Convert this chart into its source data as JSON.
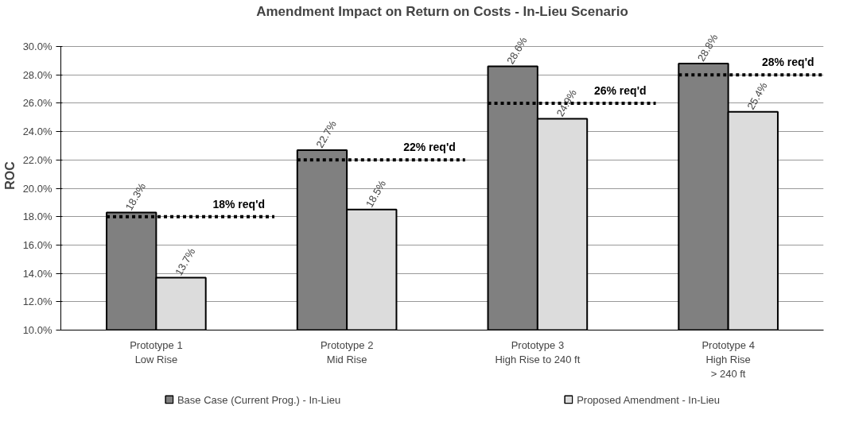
{
  "chart_data": {
    "type": "bar",
    "title": "Amendment Impact on Return on Costs - In-Lieu Scenario",
    "ylabel": "ROC",
    "categories": [
      "Prototype 1\nLow Rise",
      "Prototype 2\nMid Rise",
      "Prototype 3\nHigh Rise to 240 ft",
      "Prototype 4\nHigh Rise\n> 240 ft"
    ],
    "series": [
      {
        "name": "Base Case (Current Prog.) - In-Lieu",
        "color": "#808080",
        "values": [
          18.3,
          22.7,
          28.6,
          28.8
        ],
        "value_labels": [
          "18.3%",
          "22.7%",
          "28.6%",
          "28.8%"
        ]
      },
      {
        "name": "Proposed Amendment - In-Lieu",
        "color": "#dcdcdc",
        "values": [
          13.7,
          18.5,
          24.9,
          25.4
        ],
        "value_labels": [
          "13.7%",
          "18.5%",
          "24.9%",
          "25.4%"
        ]
      }
    ],
    "ylim": [
      10,
      30
    ],
    "yticks": [
      {
        "value": 10,
        "label": "10.0%"
      },
      {
        "value": 12,
        "label": "12.0%"
      },
      {
        "value": 14,
        "label": "14.0%"
      },
      {
        "value": 16,
        "label": "16.0%"
      },
      {
        "value": 18,
        "label": "18.0%"
      },
      {
        "value": 20,
        "label": "20.0%"
      },
      {
        "value": 22,
        "label": "22.0%"
      },
      {
        "value": 24,
        "label": "24.0%"
      },
      {
        "value": 26,
        "label": "26.0%"
      },
      {
        "value": 28,
        "label": "28.0%"
      },
      {
        "value": 30,
        "label": "30.0%"
      }
    ],
    "ref_lines": [
      {
        "axis": "y",
        "value": 18,
        "label": "18% req'd",
        "color": "#000000",
        "line_style": "dotted"
      },
      {
        "axis": "y",
        "value": 22,
        "label": "22% req'd",
        "color": "#000000",
        "line_style": "dotted"
      },
      {
        "axis": "y",
        "value": 26,
        "label": "26% req'd",
        "color": "#000000",
        "line_style": "dotted"
      },
      {
        "axis": "y",
        "value": 28,
        "label": "28% req'd",
        "color": "#000000",
        "line_style": "dotted"
      }
    ],
    "grid": "y",
    "legend": "bottom"
  }
}
